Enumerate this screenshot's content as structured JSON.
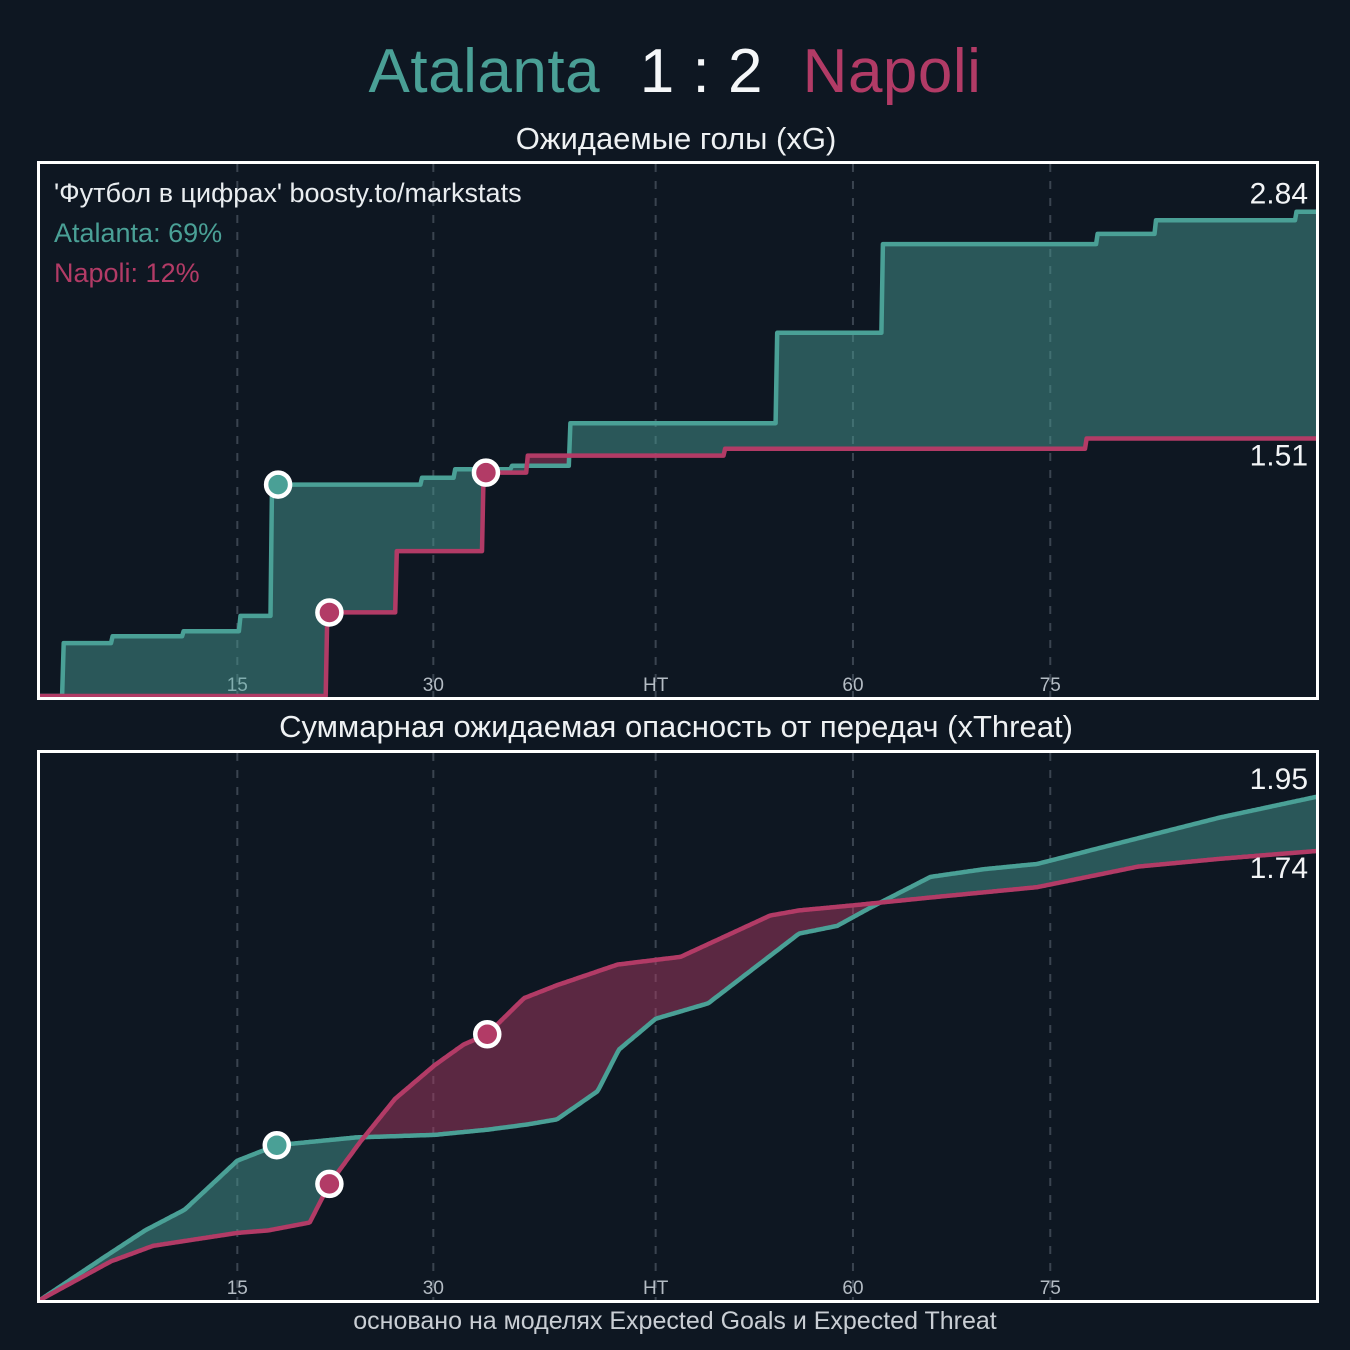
{
  "header": {
    "home": "Atalanta",
    "score": "1 : 2",
    "away": "Napoli"
  },
  "colors": {
    "home": "#4aa096",
    "away": "#b23b66",
    "background": "#0e1722",
    "grid": "#3a4450",
    "tick_label": "#b4bcc4",
    "value_label": "#f2f4f6",
    "border": "#ffffff"
  },
  "annotations": {
    "source": "'Футбол в цифрах' boosty.to/markstats",
    "home_share": "Atalanta: 69%",
    "away_share": "Napoli: 12%"
  },
  "footer": {
    "caption": "основано на моделях Expected Goals и Expected Threat"
  },
  "chart_data": [
    {
      "id": "xg",
      "type": "area",
      "interp": "step",
      "title": "Ожидаемые голы (xG)",
      "grid": "vertical-dashed",
      "legend_position": "none",
      "x_axis": {
        "total": 97,
        "ticks": [
          {
            "t": 15.0,
            "label": "15"
          },
          {
            "t": 29.9,
            "label": "30"
          },
          {
            "t": 46.8,
            "label": "HT"
          },
          {
            "t": 61.8,
            "label": "60"
          },
          {
            "t": 76.8,
            "label": "75"
          }
        ]
      },
      "ylim": [
        0,
        3.12
      ],
      "series": [
        {
          "name": "Atalanta",
          "color": "#4aa096",
          "final_value": 2.84,
          "final_label": "2.84",
          "label_side": "above",
          "points": [
            [
              0,
              0
            ],
            [
              1.8,
              0.31
            ],
            [
              5.5,
              0.35
            ],
            [
              10.8,
              0.38
            ],
            [
              15.2,
              0.47
            ],
            [
              17.6,
              1.24
            ],
            [
              29,
              1.28
            ],
            [
              31.5,
              1.33
            ],
            [
              35.8,
              1.35
            ],
            [
              40.3,
              1.6
            ],
            [
              56,
              2.13
            ],
            [
              64,
              2.65
            ],
            [
              80.3,
              2.71
            ],
            [
              84.8,
              2.79
            ],
            [
              95.5,
              2.84
            ],
            [
              97,
              2.84
            ]
          ],
          "goals": [
            {
              "t": 18.1,
              "v": 1.24
            }
          ]
        },
        {
          "name": "Napoli",
          "color": "#b23b66",
          "final_value": 1.51,
          "final_label": "1.51",
          "label_side": "below",
          "points": [
            [
              0,
              0
            ],
            [
              21.8,
              0.49
            ],
            [
              27.1,
              0.85
            ],
            [
              33.7,
              1.31
            ],
            [
              37,
              1.41
            ],
            [
              52,
              1.45
            ],
            [
              79.5,
              1.51
            ],
            [
              97,
              1.51
            ]
          ],
          "goals": [
            {
              "t": 22.0,
              "v": 0.49
            },
            {
              "t": 33.9,
              "v": 1.31
            }
          ]
        }
      ]
    },
    {
      "id": "xthreat",
      "type": "area",
      "interp": "linear",
      "title": "Суммарная ожидаемая опасность от передач (xThreat)",
      "grid": "vertical-dashed",
      "legend_position": "none",
      "x_axis": {
        "total": 97,
        "ticks": [
          {
            "t": 15.0,
            "label": "15"
          },
          {
            "t": 29.9,
            "label": "30"
          },
          {
            "t": 46.8,
            "label": "HT"
          },
          {
            "t": 61.8,
            "label": "60"
          },
          {
            "t": 76.8,
            "label": "75"
          }
        ]
      },
      "ylim": [
        0,
        2.12
      ],
      "series": [
        {
          "name": "Atalanta",
          "color": "#4aa096",
          "final_value": 1.95,
          "final_label": "1.95",
          "label_side": "above",
          "points": [
            [
              0,
              0
            ],
            [
              5,
              0.17
            ],
            [
              8,
              0.27
            ],
            [
              11,
              0.35
            ],
            [
              15,
              0.54
            ],
            [
              18,
              0.6
            ],
            [
              20,
              0.61
            ],
            [
              24,
              0.63
            ],
            [
              30,
              0.64
            ],
            [
              34,
              0.66
            ],
            [
              37,
              0.68
            ],
            [
              39.3,
              0.7
            ],
            [
              42.4,
              0.81
            ],
            [
              44,
              0.97
            ],
            [
              46.8,
              1.09
            ],
            [
              50.8,
              1.15
            ],
            [
              57.7,
              1.42
            ],
            [
              60.6,
              1.45
            ],
            [
              63.1,
              1.52
            ],
            [
              67.7,
              1.64
            ],
            [
              71.8,
              1.67
            ],
            [
              75.8,
              1.69
            ],
            [
              83.5,
              1.79
            ],
            [
              89.7,
              1.87
            ],
            [
              97,
              1.95
            ]
          ],
          "goals": [
            {
              "t": 18,
              "v": 0.6
            }
          ]
        },
        {
          "name": "Napoli",
          "color": "#b23b66",
          "final_value": 1.74,
          "final_label": "1.74",
          "label_side": "below",
          "points": [
            [
              0,
              0
            ],
            [
              5.4,
              0.15
            ],
            [
              8.6,
              0.21
            ],
            [
              15,
              0.26
            ],
            [
              17.4,
              0.27
            ],
            [
              20.5,
              0.3
            ],
            [
              22,
              0.45
            ],
            [
              24.3,
              0.61
            ],
            [
              27,
              0.78
            ],
            [
              30,
              0.91
            ],
            [
              32.2,
              0.99
            ],
            [
              34,
              1.03
            ],
            [
              36.8,
              1.17
            ],
            [
              39.3,
              1.22
            ],
            [
              43.9,
              1.3
            ],
            [
              48.7,
              1.33
            ],
            [
              55.5,
              1.49
            ],
            [
              57.7,
              1.51
            ],
            [
              61.9,
              1.53
            ],
            [
              67.7,
              1.56
            ],
            [
              75.8,
              1.6
            ],
            [
              83.5,
              1.68
            ],
            [
              89.7,
              1.71
            ],
            [
              97,
              1.74
            ]
          ],
          "goals": [
            {
              "t": 22,
              "v": 0.45
            },
            {
              "t": 34,
              "v": 1.03
            }
          ]
        }
      ]
    }
  ]
}
